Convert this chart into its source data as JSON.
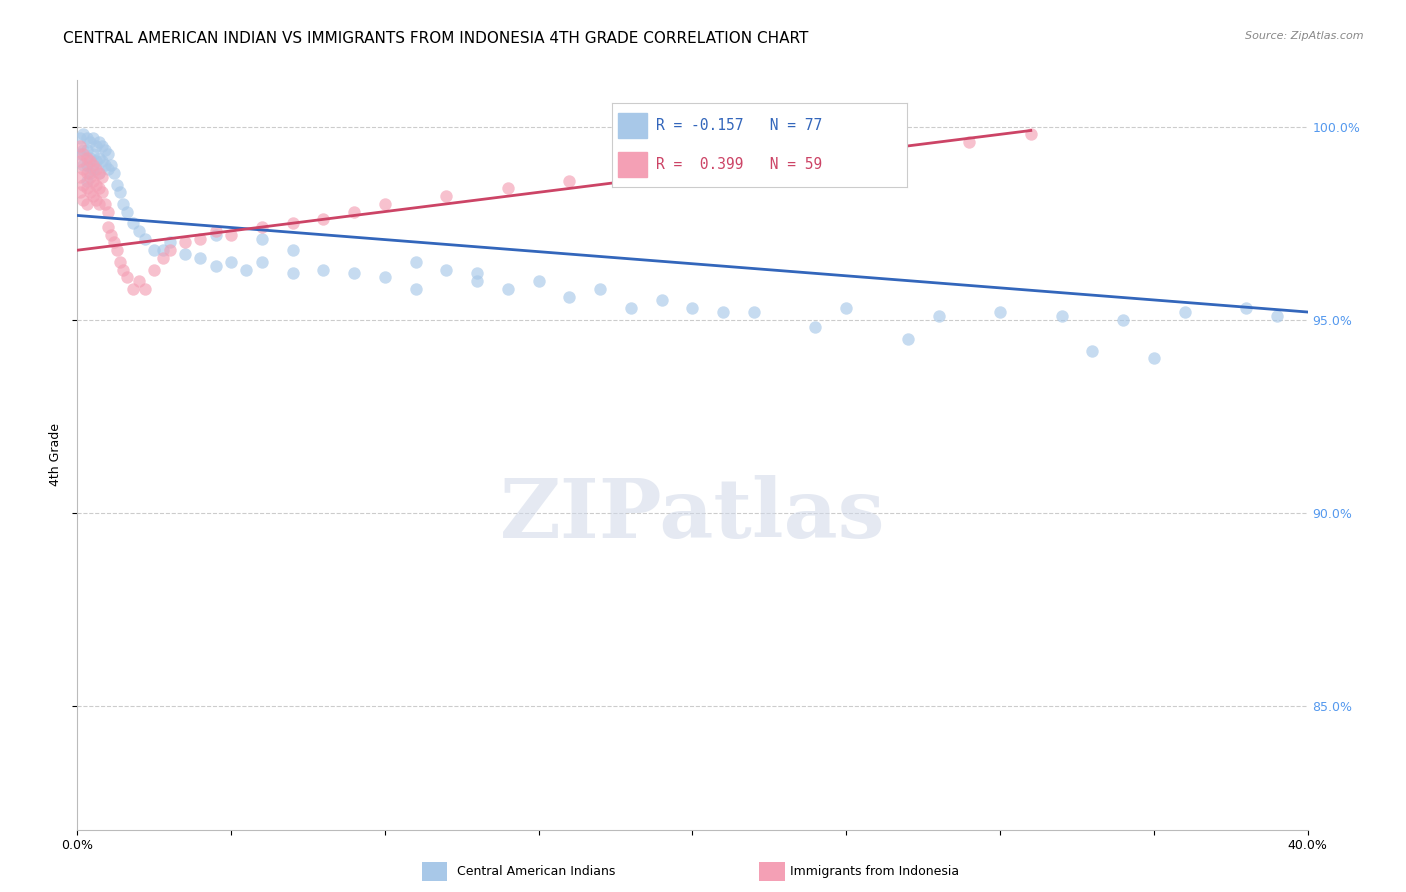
{
  "title": "CENTRAL AMERICAN INDIAN VS IMMIGRANTS FROM INDONESIA 4TH GRADE CORRELATION CHART",
  "source": "Source: ZipAtlas.com",
  "ylabel": "4th Grade",
  "yaxis_labels": [
    "100.0%",
    "95.0%",
    "90.0%",
    "85.0%"
  ],
  "yaxis_values": [
    1.0,
    0.95,
    0.9,
    0.85
  ],
  "xmin": 0.0,
  "xmax": 0.4,
  "ymin": 0.818,
  "ymax": 1.012,
  "legend_blue_R": "R = -0.157",
  "legend_blue_N": "N = 77",
  "legend_pink_R": "R =  0.399",
  "legend_pink_N": "N = 59",
  "legend_label_blue": "Central American Indians",
  "legend_label_pink": "Immigrants from Indonesia",
  "blue_color": "#A8C8E8",
  "pink_color": "#F4A0B5",
  "blue_line_color": "#3366BB",
  "pink_line_color": "#CC4466",
  "blue_scatter_x": [
    0.001,
    0.001,
    0.002,
    0.002,
    0.002,
    0.003,
    0.003,
    0.003,
    0.003,
    0.004,
    0.004,
    0.004,
    0.005,
    0.005,
    0.005,
    0.006,
    0.006,
    0.007,
    0.007,
    0.007,
    0.008,
    0.008,
    0.009,
    0.009,
    0.01,
    0.01,
    0.011,
    0.012,
    0.013,
    0.014,
    0.015,
    0.016,
    0.018,
    0.02,
    0.022,
    0.025,
    0.028,
    0.03,
    0.035,
    0.04,
    0.045,
    0.05,
    0.055,
    0.06,
    0.07,
    0.08,
    0.09,
    0.1,
    0.11,
    0.12,
    0.13,
    0.14,
    0.16,
    0.18,
    0.2,
    0.22,
    0.25,
    0.28,
    0.3,
    0.32,
    0.34,
    0.36,
    0.38,
    0.045,
    0.06,
    0.07,
    0.11,
    0.13,
    0.15,
    0.17,
    0.19,
    0.21,
    0.24,
    0.27,
    0.33,
    0.35,
    0.39
  ],
  "blue_scatter_y": [
    0.997,
    0.993,
    0.998,
    0.994,
    0.99,
    0.997,
    0.994,
    0.99,
    0.986,
    0.996,
    0.992,
    0.988,
    0.997,
    0.993,
    0.989,
    0.995,
    0.991,
    0.996,
    0.992,
    0.988,
    0.995,
    0.991,
    0.994,
    0.99,
    0.993,
    0.989,
    0.99,
    0.988,
    0.985,
    0.983,
    0.98,
    0.978,
    0.975,
    0.973,
    0.971,
    0.968,
    0.968,
    0.97,
    0.967,
    0.966,
    0.964,
    0.965,
    0.963,
    0.965,
    0.962,
    0.963,
    0.962,
    0.961,
    0.958,
    0.963,
    0.96,
    0.958,
    0.956,
    0.953,
    0.953,
    0.952,
    0.953,
    0.951,
    0.952,
    0.951,
    0.95,
    0.952,
    0.953,
    0.972,
    0.971,
    0.968,
    0.965,
    0.962,
    0.96,
    0.958,
    0.955,
    0.952,
    0.948,
    0.945,
    0.942,
    0.94,
    0.951
  ],
  "pink_scatter_x": [
    0.001,
    0.001,
    0.001,
    0.001,
    0.002,
    0.002,
    0.002,
    0.002,
    0.003,
    0.003,
    0.003,
    0.003,
    0.004,
    0.004,
    0.004,
    0.005,
    0.005,
    0.005,
    0.006,
    0.006,
    0.006,
    0.007,
    0.007,
    0.007,
    0.008,
    0.008,
    0.009,
    0.01,
    0.01,
    0.011,
    0.012,
    0.013,
    0.014,
    0.015,
    0.016,
    0.018,
    0.02,
    0.022,
    0.025,
    0.028,
    0.03,
    0.035,
    0.04,
    0.045,
    0.05,
    0.06,
    0.07,
    0.08,
    0.09,
    0.1,
    0.12,
    0.14,
    0.16,
    0.18,
    0.2,
    0.23,
    0.26,
    0.29,
    0.31
  ],
  "pink_scatter_y": [
    0.995,
    0.991,
    0.987,
    0.983,
    0.993,
    0.989,
    0.985,
    0.981,
    0.992,
    0.988,
    0.984,
    0.98,
    0.991,
    0.987,
    0.983,
    0.99,
    0.986,
    0.982,
    0.989,
    0.985,
    0.981,
    0.988,
    0.984,
    0.98,
    0.987,
    0.983,
    0.98,
    0.978,
    0.974,
    0.972,
    0.97,
    0.968,
    0.965,
    0.963,
    0.961,
    0.958,
    0.96,
    0.958,
    0.963,
    0.966,
    0.968,
    0.97,
    0.971,
    0.973,
    0.972,
    0.974,
    0.975,
    0.976,
    0.978,
    0.98,
    0.982,
    0.984,
    0.986,
    0.988,
    0.99,
    0.993,
    0.994,
    0.996,
    0.998
  ],
  "blue_line_x": [
    0.0,
    0.4
  ],
  "blue_line_y": [
    0.977,
    0.952
  ],
  "pink_line_x": [
    0.0,
    0.31
  ],
  "pink_line_y": [
    0.968,
    0.999
  ],
  "watermark_text": "ZIPatlas",
  "bg_color": "#FFFFFF",
  "grid_color": "#CCCCCC",
  "right_axis_color": "#5599EE",
  "title_fontsize": 11,
  "axis_label_fontsize": 9,
  "scatter_size": 80,
  "scatter_alpha": 0.65
}
